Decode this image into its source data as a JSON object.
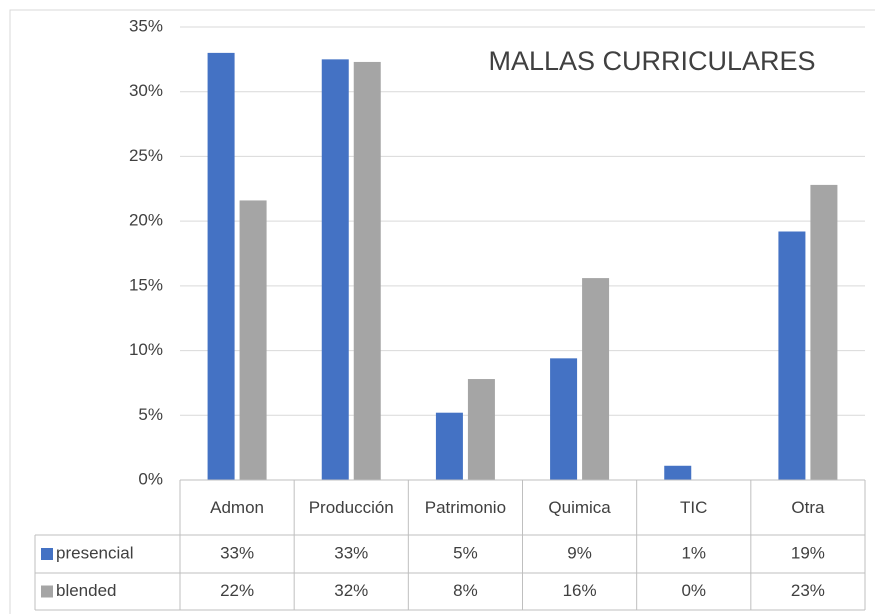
{
  "chart_data": {
    "type": "bar",
    "title": "MALLAS CURRICULARES",
    "categories": [
      "Admon",
      "Producción",
      "Patrimonio",
      "Quimica",
      "TIC",
      "Otra"
    ],
    "series": [
      {
        "name": "presencial",
        "color": "#4472c4",
        "values": [
          33.0,
          32.5,
          5.2,
          9.4,
          1.1,
          19.2
        ],
        "value_labels": [
          "33%",
          "33%",
          "5%",
          "9%",
          "1%",
          "19%"
        ]
      },
      {
        "name": "blended",
        "color": "#a5a5a5",
        "values": [
          21.6,
          32.3,
          7.8,
          15.6,
          0,
          22.8
        ],
        "value_labels": [
          "22%",
          "32%",
          "8%",
          "16%",
          "0%",
          "23%"
        ]
      }
    ],
    "ylim": [
      0,
      35
    ],
    "yticks": [
      {
        "value": 0,
        "label": "0%"
      },
      {
        "value": 5,
        "label": "5%"
      },
      {
        "value": 10,
        "label": "10%"
      },
      {
        "value": 15,
        "label": "15%"
      },
      {
        "value": 20,
        "label": "20%"
      },
      {
        "value": 25,
        "label": "25%"
      },
      {
        "value": 30,
        "label": "30%"
      },
      {
        "value": 35,
        "label": "35%"
      }
    ],
    "grid": true
  }
}
